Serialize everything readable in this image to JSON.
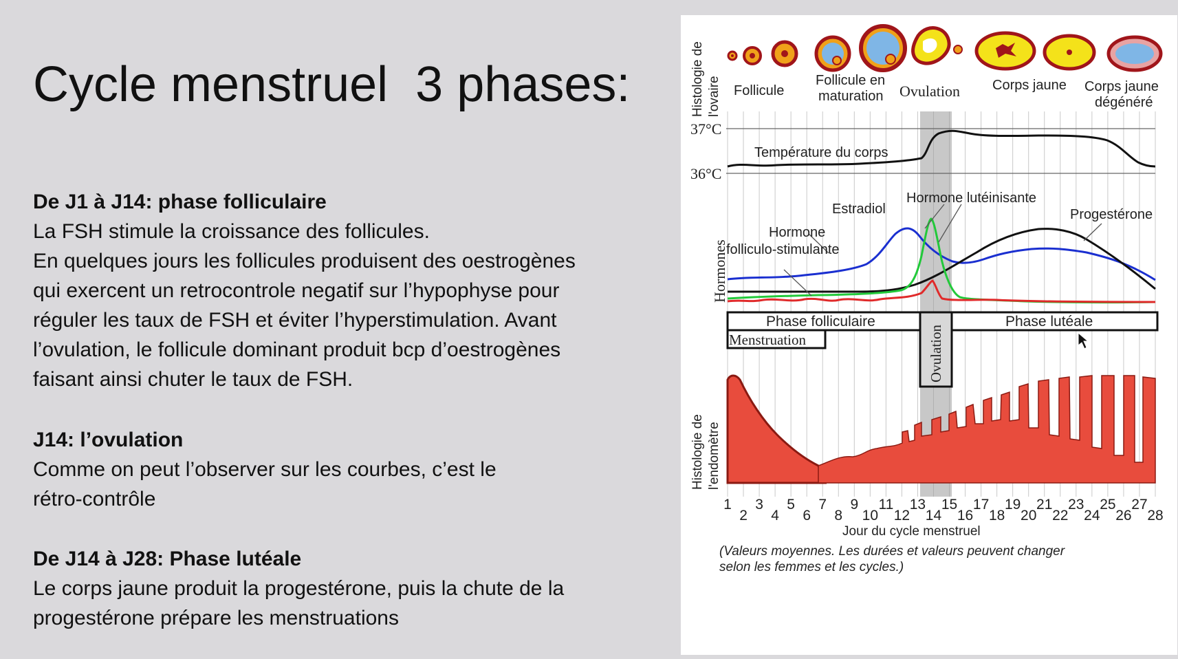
{
  "title": "Cycle menstruel  3 phases:",
  "sections": [
    {
      "heading": "De J1 à J14: phase folliculaire",
      "lines": [
        "La FSH stimule la croissance des follicules.",
        "En quelques jours les follicules produisent des oestrogènes",
        "qui exercent un retrocontrole negatif sur l’hypophyse pour",
        "réguler les taux de FSH et éviter l’hyperstimulation. Avant",
        "l’ovulation, le follicule dominant produit bcp d’oestrogènes",
        "faisant ainsi chuter le taux de FSH."
      ]
    },
    {
      "heading": "J14: l’ovulation",
      "lines": [
        "Comme on peut l’observer sur les courbes, c’est le",
        "rétro-contrôle"
      ]
    },
    {
      "heading": "De J14 à J28: Phase lutéale",
      "lines": [
        "Le corps jaune produit la progestérone, puis la chute de la",
        "progestérone prépare les menstruations"
      ]
    }
  ],
  "figure": {
    "ovary_axis_label_1": "Histologie de",
    "ovary_axis_label_2": "l'ovaire",
    "ovary_stages": {
      "follicule": "Follicule",
      "follicule_maturation_1": "Follicule en",
      "follicule_maturation_2": "maturation",
      "ovulation": "Ovulation",
      "corps_jaune": "Corps jaune",
      "corps_jaune_degenere_1": "Corps jaune",
      "corps_jaune_degenere_2": "dégénéré"
    },
    "temperature": {
      "label": "Température du corps",
      "tick_high": "37°C",
      "tick_low": "36°C"
    },
    "hormones": {
      "axis_label": "Hormones",
      "fsh_1": "Hormone",
      "fsh_2": "folliculo-stimulante",
      "estradiol": "Estradiol",
      "lh": "Hormone lutéinisante",
      "progesterone": "Progestérone"
    },
    "phases": {
      "folliculaire": "Phase folliculaire",
      "luteale": "Phase lutéale",
      "menstruation": "Menstruation",
      "ovulation": "Ovulation"
    },
    "endometrium_axis_label_1": "Histologie de",
    "endometrium_axis_label_2": "l'endomètre",
    "x_axis_title": "Jour du cycle menstruel",
    "footnote_1": "(Valeurs moyennes. Les durées et valeurs peuvent changer",
    "footnote_2": "selon les femmes et les cycles.)",
    "days": [
      "1",
      "2",
      "3",
      "4",
      "5",
      "6",
      "7",
      "8",
      "9",
      "10",
      "11",
      "12",
      "13",
      "14",
      "15",
      "16",
      "17",
      "18",
      "19",
      "20",
      "21",
      "22",
      "23",
      "24",
      "25",
      "26",
      "27",
      "28"
    ],
    "colors": {
      "fsh": "#1a2fd0",
      "estradiol": "#22c93a",
      "lh": "#e02a2a",
      "progesterone": "#111111",
      "endometrium": "#e84c3d",
      "corps_jaune": "#f4e21a",
      "follicle_fluid": "#7fb6e6"
    }
  }
}
